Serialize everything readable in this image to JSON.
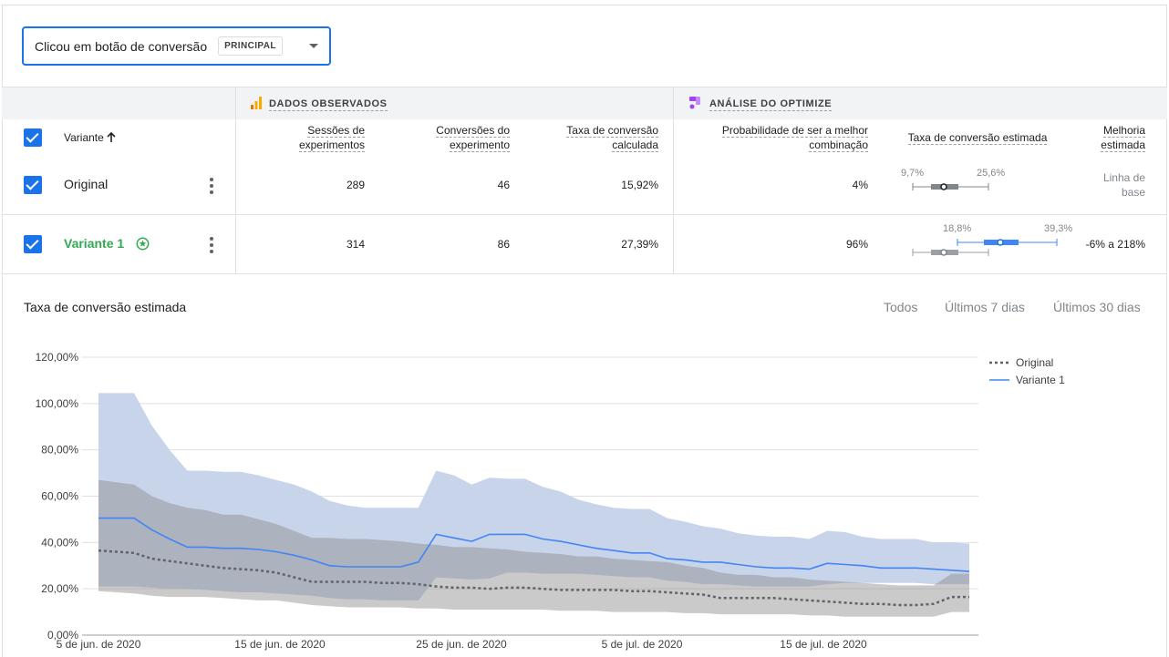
{
  "goal_selector": {
    "goal": "Clicou em botão de conversão",
    "badge": "PRINCIPAL"
  },
  "groups": {
    "observed": "DADOS OBSERVADOS",
    "optimize": "ANÁLISE DO OPTIMIZE"
  },
  "headers": {
    "variant": "Variante",
    "sessions_1": "Sessões de",
    "sessions_2": "experimentos",
    "conversions_1": "Conversões do",
    "conversions_2": "experimento",
    "rate_1": "Taxa de conversão",
    "rate_2": "calculada",
    "prob_1": "Probabilidade de ser a melhor",
    "prob_2": "combinação",
    "est_rate": "Taxa de conversão estimada",
    "improve_1": "Melhoria",
    "improve_2": "estimada"
  },
  "rows": [
    {
      "name": "Original",
      "sessions": "289",
      "conversions": "46",
      "rate": "15,92%",
      "prob": "4%",
      "range_low": "9,7%",
      "range_high": "25,6%",
      "improve_1": "Linha de",
      "improve_2": "base"
    },
    {
      "name": "Variante 1",
      "sessions": "314",
      "conversions": "86",
      "rate": "27,39%",
      "prob": "96%",
      "range_low": "18,8%",
      "range_high": "39,3%",
      "improve": "-6% a 218%"
    }
  ],
  "chart_section": {
    "title": "Taxa de conversão estimada",
    "ranges": [
      "Todos",
      "Últimos 7 dias",
      "Últimos 30 dias"
    ]
  },
  "colors": {
    "accent": "#1a73e8",
    "green": "#34a853",
    "variant_band": "#c8d4ea",
    "original_band": "#c9c9c9"
  },
  "chart_data": {
    "type": "line",
    "ylim": [
      0,
      120
    ],
    "yticks": [
      "0,00%",
      "20,00%",
      "40,00%",
      "60,00%",
      "80,00%",
      "100,00%",
      "120,00%"
    ],
    "xticks": [
      "5 de jun. de 2020",
      "15 de jun. de 2020",
      "25 de jun. de 2020",
      "5 de jul. de 2020",
      "15 de jul. de 2020"
    ],
    "x": [
      0,
      1,
      2,
      3,
      4,
      5,
      6,
      7,
      8,
      9,
      10,
      11,
      12,
      13,
      14,
      15,
      16,
      17,
      18,
      19,
      20,
      21,
      22,
      23,
      24,
      25,
      26,
      27,
      28,
      29,
      30,
      31,
      32,
      33,
      34,
      35,
      36,
      37,
      38,
      39,
      40,
      41,
      42,
      43,
      44,
      45,
      46,
      47,
      48,
      49
    ],
    "series": [
      {
        "name": "Original",
        "style": "dotted",
        "values": [
          36.5,
          36,
          35.5,
          33,
          32,
          31,
          30,
          29,
          28.5,
          28,
          27,
          25,
          23,
          23,
          23,
          23,
          22.5,
          22.5,
          22,
          21,
          20.5,
          20.5,
          20,
          20.5,
          20.5,
          20,
          19.5,
          19.5,
          19.5,
          19.5,
          19,
          19,
          18.5,
          18,
          17.5,
          16,
          16,
          16,
          16,
          15.5,
          15,
          14.5,
          14,
          13.5,
          13.5,
          13,
          13,
          13.5,
          16.5,
          16.5
        ],
        "upper": [
          67,
          66,
          65,
          60,
          57,
          55,
          54,
          52,
          52,
          50,
          48,
          45,
          42,
          42,
          41.5,
          41.5,
          41,
          40.5,
          39.5,
          39,
          38,
          38,
          37.5,
          37,
          36,
          35.5,
          35,
          34,
          34,
          33,
          32.5,
          32,
          31.5,
          30,
          29,
          27,
          26,
          26,
          25,
          25,
          24,
          23.5,
          23,
          22.5,
          22,
          21.5,
          21.5,
          21.5,
          26.5,
          26.5
        ],
        "lower": [
          19,
          18.5,
          18,
          17,
          16.5,
          16.5,
          16.5,
          16,
          15.5,
          15,
          15,
          14,
          13,
          12.5,
          12,
          12,
          12,
          12,
          11.5,
          11.5,
          11,
          11,
          11,
          11,
          11,
          11,
          10.5,
          10.5,
          10.5,
          10,
          10,
          10,
          10,
          9.5,
          9.5,
          9,
          9,
          9,
          9,
          9,
          8.5,
          8.5,
          8,
          8,
          8,
          8,
          8,
          8,
          10,
          10
        ]
      },
      {
        "name": "Variante 1",
        "style": "solid",
        "values": [
          50.5,
          50.5,
          50.5,
          45.5,
          41.5,
          38,
          38,
          37.5,
          37.5,
          37,
          36,
          34.5,
          32.5,
          30,
          29.5,
          29.5,
          29.5,
          29.5,
          31.5,
          43.5,
          42,
          40.5,
          43.5,
          43.5,
          43.5,
          41.5,
          40.5,
          39,
          37.5,
          36.5,
          35.5,
          35.5,
          33,
          32.5,
          31.5,
          31.5,
          30.5,
          29.5,
          29,
          29,
          28.5,
          31,
          30.5,
          30,
          29,
          29,
          29,
          28.5,
          28,
          27.5
        ],
        "upper": [
          104.5,
          104.5,
          104.5,
          90.5,
          80,
          71,
          71,
          70.5,
          70.5,
          69,
          67,
          65,
          62,
          58,
          56,
          55,
          55,
          55,
          55,
          71,
          69,
          65,
          68,
          67.5,
          67.5,
          64,
          62,
          58.5,
          56.5,
          55,
          54.5,
          54.5,
          50.5,
          49,
          47,
          46,
          44,
          43,
          42.5,
          42.5,
          41.5,
          45,
          44.5,
          42.5,
          41.5,
          41.5,
          41.5,
          40,
          40,
          39.5
        ],
        "lower": [
          21,
          21,
          21,
          20.5,
          20,
          20,
          19.5,
          19,
          18.5,
          18.5,
          18,
          17.5,
          17,
          16,
          15.5,
          15.5,
          15,
          15,
          15,
          25,
          24.5,
          24,
          24.5,
          27,
          27,
          26.5,
          26.5,
          26.5,
          26,
          25.5,
          25,
          25,
          23.5,
          23,
          22,
          22,
          21.5,
          21,
          21,
          21,
          21,
          22,
          22.5,
          22.5,
          22.5,
          22.5,
          22.5,
          22,
          22,
          22
        ]
      }
    ]
  }
}
